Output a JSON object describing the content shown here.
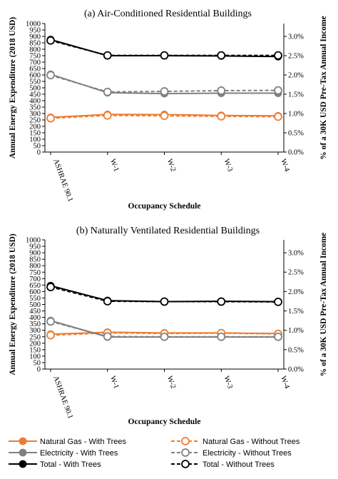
{
  "chart_data": [
    {
      "type": "line",
      "title": "(a) Air-Conditioned Residential Buildings",
      "xlabel": "Occupancy Schedule",
      "ylabel": "Annual Energy Expenditure (2018 USD)",
      "y2label": "% of a 30K USD Pre-Tax Annual Income",
      "categories": [
        "ASHRAE 90.1",
        "W-1",
        "W-2",
        "W-3",
        "W-4"
      ],
      "ylim": [
        0,
        1000
      ],
      "yticks": [
        "0",
        "50",
        "100",
        "150",
        "200",
        "250",
        "300",
        "350",
        "400",
        "450",
        "500",
        "550",
        "600",
        "650",
        "700",
        "750",
        "800",
        "850",
        "900",
        "950",
        "1000"
      ],
      "y2lim": [
        0,
        3.333
      ],
      "y2ticks": [
        "0.0%",
        "0.5%",
        "1.0%",
        "1.5%",
        "2.0%",
        "2.5%",
        "3.0%"
      ],
      "grid": false,
      "series": [
        {
          "name": "Natural Gas - With Trees",
          "values": [
            270,
            293,
            292,
            285,
            282
          ],
          "color": "#ED7D31",
          "dashed": false,
          "filled": true
        },
        {
          "name": "Natural Gas - Without Trees",
          "values": [
            263,
            285,
            282,
            278,
            275
          ],
          "color": "#ED7D31",
          "dashed": true,
          "filled": false
        },
        {
          "name": "Electricity - With Trees",
          "values": [
            605,
            462,
            455,
            458,
            458
          ],
          "color": "#808080",
          "dashed": false,
          "filled": true
        },
        {
          "name": "Electricity - Without Trees",
          "values": [
            598,
            468,
            472,
            478,
            480
          ],
          "color": "#808080",
          "dashed": true,
          "filled": false
        },
        {
          "name": "Total - With Trees",
          "values": [
            875,
            750,
            750,
            748,
            743
          ],
          "color": "#000000",
          "dashed": false,
          "filled": true
        },
        {
          "name": "Total - Without Trees",
          "values": [
            868,
            752,
            752,
            752,
            752
          ],
          "color": "#000000",
          "dashed": true,
          "filled": false
        }
      ]
    },
    {
      "type": "line",
      "title": "(b) Naturally Ventilated Residential Buildings",
      "xlabel": "Occupancy Schedule",
      "ylabel": "Annual Energy Expenditure (2018 USD)",
      "y2label": "% of a 30K USD Pre-Tax Annual Income",
      "categories": [
        "ASHRAE 90.1",
        "W-1",
        "W-2",
        "W-3",
        "W-4"
      ],
      "ylim": [
        0,
        1000
      ],
      "yticks": [
        "0",
        "50",
        "100",
        "150",
        "200",
        "250",
        "300",
        "350",
        "400",
        "450",
        "500",
        "550",
        "600",
        "650",
        "700",
        "750",
        "800",
        "850",
        "900",
        "950",
        "1000"
      ],
      "y2lim": [
        0,
        3.333
      ],
      "y2ticks": [
        "0.0%",
        "0.5%",
        "1.0%",
        "1.5%",
        "2.0%",
        "2.5%",
        "3.0%"
      ],
      "grid": false,
      "series": [
        {
          "name": "Natural Gas - With Trees",
          "values": [
            270,
            285,
            280,
            280,
            275
          ],
          "color": "#ED7D31",
          "dashed": false,
          "filled": true
        },
        {
          "name": "Natural Gas - Without Trees",
          "values": [
            262,
            280,
            275,
            278,
            272
          ],
          "color": "#ED7D31",
          "dashed": true,
          "filled": false
        },
        {
          "name": "Electricity - With Trees",
          "values": [
            375,
            248,
            248,
            248,
            248
          ],
          "color": "#808080",
          "dashed": false,
          "filled": true
        },
        {
          "name": "Electricity - Without Trees",
          "values": [
            368,
            252,
            250,
            250,
            250
          ],
          "color": "#808080",
          "dashed": true,
          "filled": false
        },
        {
          "name": "Total - With Trees",
          "values": [
            645,
            530,
            522,
            525,
            522
          ],
          "color": "#000000",
          "dashed": false,
          "filled": true
        },
        {
          "name": "Total - Without Trees",
          "values": [
            635,
            525,
            522,
            522,
            520
          ],
          "color": "#000000",
          "dashed": true,
          "filled": false
        }
      ]
    }
  ],
  "legend": {
    "placement": "bottom",
    "items": [
      {
        "label": "Natural Gas - With Trees",
        "color": "#ED7D31",
        "dashed": false,
        "filled": true
      },
      {
        "label": "Natural Gas - Without Trees",
        "color": "#ED7D31",
        "dashed": true,
        "filled": false
      },
      {
        "label": "Electricity - With Trees",
        "color": "#808080",
        "dashed": false,
        "filled": true
      },
      {
        "label": "Electricity - Without Trees",
        "color": "#808080",
        "dashed": true,
        "filled": false
      },
      {
        "label": "Total - With Trees",
        "color": "#000000",
        "dashed": false,
        "filled": true
      },
      {
        "label": "Total - Without Trees",
        "color": "#000000",
        "dashed": true,
        "filled": false
      }
    ]
  }
}
